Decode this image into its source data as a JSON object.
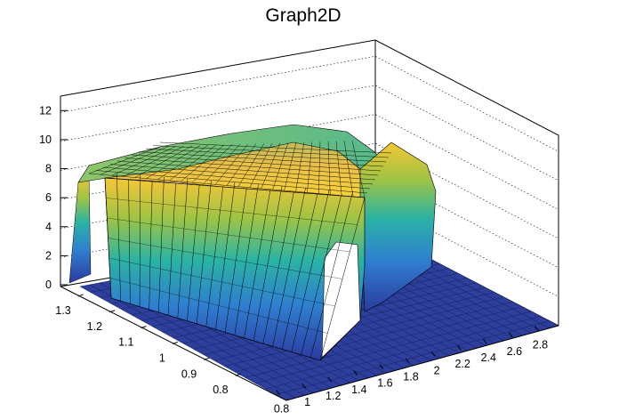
{
  "chart_data": {
    "type": "surface",
    "title": "Graph2D",
    "xlabel": "",
    "ylabel": "",
    "zlabel": "",
    "xlim": [
      0.7,
      2.9
    ],
    "ylim": [
      0.7,
      1.35
    ],
    "zlim": [
      0,
      13
    ],
    "x_ticks": [
      "0.8",
      "1",
      "1.2",
      "1.4",
      "1.6",
      "1.8",
      "2",
      "2.2",
      "2.4",
      "2.6",
      "2.8"
    ],
    "y_ticks": [
      "0.8",
      "0.9",
      "1",
      "1.1",
      "1.2",
      "1.3"
    ],
    "z_ticks": [
      "0",
      "2",
      "4",
      "6",
      "8",
      "10",
      "12"
    ],
    "grid": true,
    "colormap": "parula (blue-green-yellow)",
    "base_color": "#2d3f9a",
    "description_values": {
      "plateau_height": 8.5,
      "plateau_x_range": [
        0.8,
        1.95
      ],
      "plateau_y_range": [
        0.85,
        1.3
      ],
      "ridge_peak": 9.3
    }
  }
}
